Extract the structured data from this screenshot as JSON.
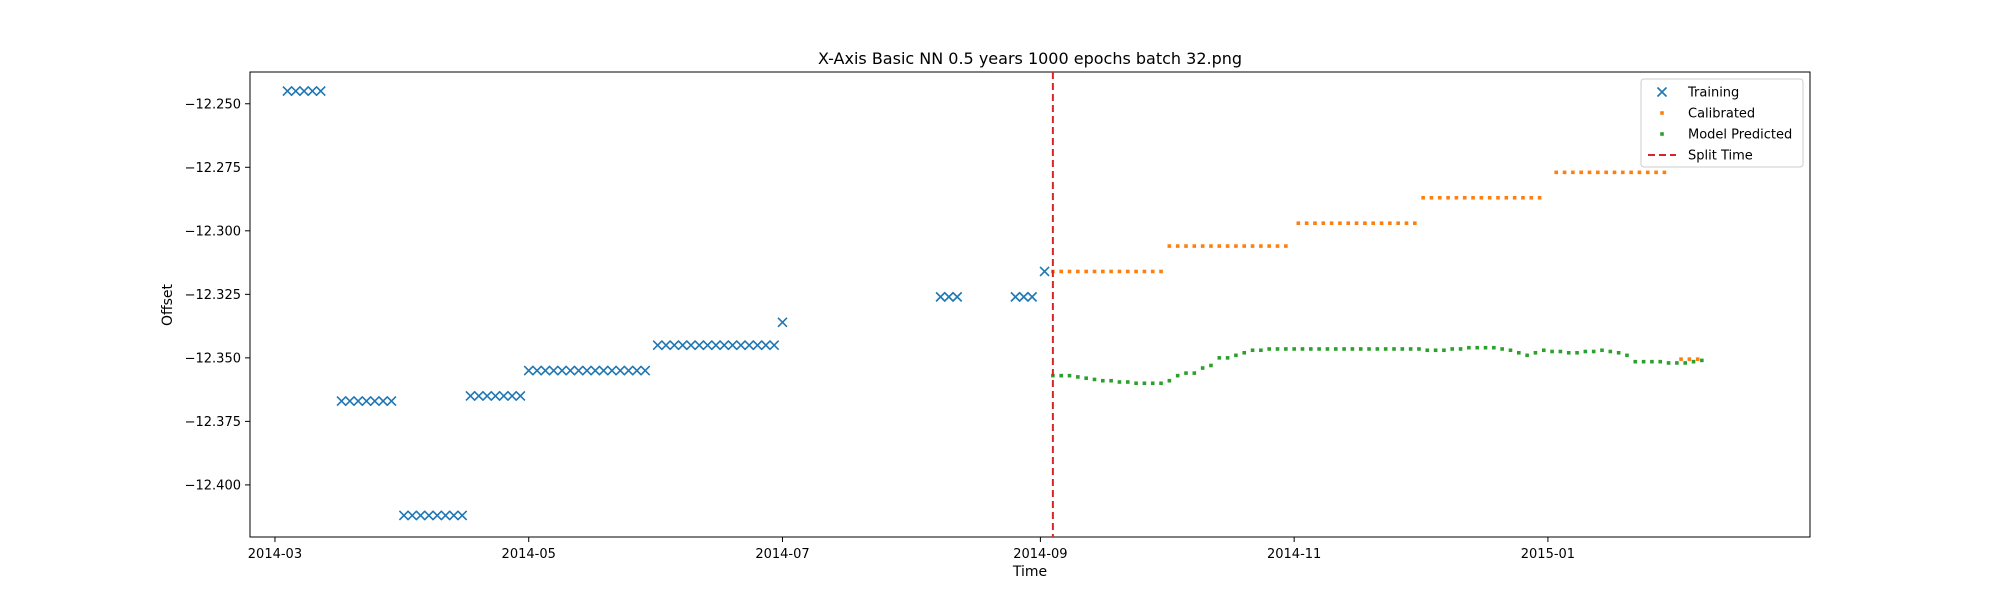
{
  "chart_data": {
    "type": "scatter",
    "title": "X-Axis Basic NN 0.5 years 1000 epochs batch 32.png",
    "xlabel": "Time",
    "ylabel": "Offset",
    "xlim": [
      "2014-02-23",
      "2015-03-05"
    ],
    "ylim": [
      -12.4205,
      -12.2375
    ],
    "x_ticks": [
      "2014-03-01",
      "2014-05-01",
      "2014-07-01",
      "2014-09-01",
      "2014-11-01",
      "2015-01-01"
    ],
    "x_tick_labels": [
      "2014-03",
      "2014-05",
      "2014-07",
      "2014-09",
      "2014-11",
      "2015-01"
    ],
    "y_ticks": [
      -12.25,
      -12.275,
      -12.3,
      -12.325,
      -12.35,
      -12.375,
      -12.4
    ],
    "y_tick_labels": [
      "−12.250",
      "−12.275",
      "−12.300",
      "−12.325",
      "−12.350",
      "−12.375",
      "−12.400"
    ],
    "grid": false,
    "legend_position": "top-right",
    "split_time": "2014-09-04",
    "series": [
      {
        "name": "Training",
        "marker": "x",
        "color": "#1f77b4",
        "points": [
          [
            "2014-03-04",
            -12.245
          ],
          [
            "2014-03-06",
            -12.245
          ],
          [
            "2014-03-08",
            -12.245
          ],
          [
            "2014-03-10",
            -12.245
          ],
          [
            "2014-03-12",
            -12.245
          ],
          [
            "2014-03-17",
            -12.367
          ],
          [
            "2014-03-19",
            -12.367
          ],
          [
            "2014-03-21",
            -12.367
          ],
          [
            "2014-03-23",
            -12.367
          ],
          [
            "2014-03-25",
            -12.367
          ],
          [
            "2014-03-27",
            -12.367
          ],
          [
            "2014-03-29",
            -12.367
          ],
          [
            "2014-04-01",
            -12.412
          ],
          [
            "2014-04-03",
            -12.412
          ],
          [
            "2014-04-05",
            -12.412
          ],
          [
            "2014-04-07",
            -12.412
          ],
          [
            "2014-04-09",
            -12.412
          ],
          [
            "2014-04-11",
            -12.412
          ],
          [
            "2014-04-13",
            -12.412
          ],
          [
            "2014-04-15",
            -12.412
          ],
          [
            "2014-04-17",
            -12.365
          ],
          [
            "2014-04-19",
            -12.365
          ],
          [
            "2014-04-21",
            -12.365
          ],
          [
            "2014-04-23",
            -12.365
          ],
          [
            "2014-04-25",
            -12.365
          ],
          [
            "2014-04-27",
            -12.365
          ],
          [
            "2014-04-29",
            -12.365
          ],
          [
            "2014-05-01",
            -12.355
          ],
          [
            "2014-05-03",
            -12.355
          ],
          [
            "2014-05-05",
            -12.355
          ],
          [
            "2014-05-07",
            -12.355
          ],
          [
            "2014-05-09",
            -12.355
          ],
          [
            "2014-05-11",
            -12.355
          ],
          [
            "2014-05-13",
            -12.355
          ],
          [
            "2014-05-15",
            -12.355
          ],
          [
            "2014-05-17",
            -12.355
          ],
          [
            "2014-05-19",
            -12.355
          ],
          [
            "2014-05-21",
            -12.355
          ],
          [
            "2014-05-23",
            -12.355
          ],
          [
            "2014-05-25",
            -12.355
          ],
          [
            "2014-05-27",
            -12.355
          ],
          [
            "2014-05-29",
            -12.355
          ],
          [
            "2014-06-01",
            -12.345
          ],
          [
            "2014-06-03",
            -12.345
          ],
          [
            "2014-06-05",
            -12.345
          ],
          [
            "2014-06-07",
            -12.345
          ],
          [
            "2014-06-09",
            -12.345
          ],
          [
            "2014-06-11",
            -12.345
          ],
          [
            "2014-06-13",
            -12.345
          ],
          [
            "2014-06-15",
            -12.345
          ],
          [
            "2014-06-17",
            -12.345
          ],
          [
            "2014-06-19",
            -12.345
          ],
          [
            "2014-06-21",
            -12.345
          ],
          [
            "2014-06-23",
            -12.345
          ],
          [
            "2014-06-25",
            -12.345
          ],
          [
            "2014-06-27",
            -12.345
          ],
          [
            "2014-06-29",
            -12.345
          ],
          [
            "2014-07-01",
            -12.336
          ],
          [
            "2014-08-08",
            -12.326
          ],
          [
            "2014-08-10",
            -12.326
          ],
          [
            "2014-08-12",
            -12.326
          ],
          [
            "2014-08-26",
            -12.326
          ],
          [
            "2014-08-28",
            -12.326
          ],
          [
            "2014-08-30",
            -12.326
          ],
          [
            "2014-09-02",
            -12.316
          ]
        ]
      },
      {
        "name": "Calibrated",
        "marker": "dot",
        "color": "#ff7f0e",
        "points": [
          [
            "2014-09-04",
            -12.316
          ],
          [
            "2014-09-06",
            -12.316
          ],
          [
            "2014-09-08",
            -12.316
          ],
          [
            "2014-09-10",
            -12.316
          ],
          [
            "2014-09-12",
            -12.316
          ],
          [
            "2014-09-14",
            -12.316
          ],
          [
            "2014-09-16",
            -12.316
          ],
          [
            "2014-09-18",
            -12.316
          ],
          [
            "2014-09-20",
            -12.316
          ],
          [
            "2014-09-22",
            -12.316
          ],
          [
            "2014-09-24",
            -12.316
          ],
          [
            "2014-09-26",
            -12.316
          ],
          [
            "2014-09-28",
            -12.316
          ],
          [
            "2014-09-30",
            -12.316
          ],
          [
            "2014-10-02",
            -12.306
          ],
          [
            "2014-10-04",
            -12.306
          ],
          [
            "2014-10-06",
            -12.306
          ],
          [
            "2014-10-08",
            -12.306
          ],
          [
            "2014-10-10",
            -12.306
          ],
          [
            "2014-10-12",
            -12.306
          ],
          [
            "2014-10-14",
            -12.306
          ],
          [
            "2014-10-16",
            -12.306
          ],
          [
            "2014-10-18",
            -12.306
          ],
          [
            "2014-10-20",
            -12.306
          ],
          [
            "2014-10-22",
            -12.306
          ],
          [
            "2014-10-24",
            -12.306
          ],
          [
            "2014-10-26",
            -12.306
          ],
          [
            "2014-10-28",
            -12.306
          ],
          [
            "2014-10-30",
            -12.306
          ],
          [
            "2014-11-02",
            -12.297
          ],
          [
            "2014-11-04",
            -12.297
          ],
          [
            "2014-11-06",
            -12.297
          ],
          [
            "2014-11-08",
            -12.297
          ],
          [
            "2014-11-10",
            -12.297
          ],
          [
            "2014-11-12",
            -12.297
          ],
          [
            "2014-11-14",
            -12.297
          ],
          [
            "2014-11-16",
            -12.297
          ],
          [
            "2014-11-18",
            -12.297
          ],
          [
            "2014-11-20",
            -12.297
          ],
          [
            "2014-11-22",
            -12.297
          ],
          [
            "2014-11-24",
            -12.297
          ],
          [
            "2014-11-26",
            -12.297
          ],
          [
            "2014-11-28",
            -12.297
          ],
          [
            "2014-11-30",
            -12.297
          ],
          [
            "2014-12-02",
            -12.287
          ],
          [
            "2014-12-04",
            -12.287
          ],
          [
            "2014-12-06",
            -12.287
          ],
          [
            "2014-12-08",
            -12.287
          ],
          [
            "2014-12-10",
            -12.287
          ],
          [
            "2014-12-12",
            -12.287
          ],
          [
            "2014-12-14",
            -12.287
          ],
          [
            "2014-12-16",
            -12.287
          ],
          [
            "2014-12-18",
            -12.287
          ],
          [
            "2014-12-20",
            -12.287
          ],
          [
            "2014-12-22",
            -12.287
          ],
          [
            "2014-12-24",
            -12.287
          ],
          [
            "2014-12-26",
            -12.287
          ],
          [
            "2014-12-28",
            -12.287
          ],
          [
            "2014-12-30",
            -12.287
          ],
          [
            "2015-01-03",
            -12.277
          ],
          [
            "2015-01-05",
            -12.277
          ],
          [
            "2015-01-07",
            -12.277
          ],
          [
            "2015-01-09",
            -12.277
          ],
          [
            "2015-01-11",
            -12.277
          ],
          [
            "2015-01-13",
            -12.277
          ],
          [
            "2015-01-15",
            -12.277
          ],
          [
            "2015-01-17",
            -12.277
          ],
          [
            "2015-01-19",
            -12.277
          ],
          [
            "2015-01-21",
            -12.277
          ],
          [
            "2015-01-23",
            -12.277
          ],
          [
            "2015-01-25",
            -12.277
          ],
          [
            "2015-01-27",
            -12.277
          ],
          [
            "2015-01-29",
            -12.277
          ],
          [
            "2015-02-02",
            -12.3505
          ],
          [
            "2015-02-04",
            -12.3505
          ],
          [
            "2015-02-06",
            -12.3505
          ]
        ]
      },
      {
        "name": "Model Predicted",
        "marker": "dot",
        "color": "#2ca02c",
        "points": [
          [
            "2014-09-04",
            -12.357
          ],
          [
            "2014-09-06",
            -12.357
          ],
          [
            "2014-09-08",
            -12.357
          ],
          [
            "2014-09-10",
            -12.3575
          ],
          [
            "2014-09-12",
            -12.358
          ],
          [
            "2014-09-14",
            -12.3585
          ],
          [
            "2014-09-16",
            -12.359
          ],
          [
            "2014-09-18",
            -12.359
          ],
          [
            "2014-09-20",
            -12.3595
          ],
          [
            "2014-09-22",
            -12.3595
          ],
          [
            "2014-09-24",
            -12.36
          ],
          [
            "2014-09-26",
            -12.36
          ],
          [
            "2014-09-28",
            -12.36
          ],
          [
            "2014-09-30",
            -12.36
          ],
          [
            "2014-10-02",
            -12.359
          ],
          [
            "2014-10-04",
            -12.357
          ],
          [
            "2014-10-06",
            -12.356
          ],
          [
            "2014-10-08",
            -12.356
          ],
          [
            "2014-10-10",
            -12.354
          ],
          [
            "2014-10-12",
            -12.353
          ],
          [
            "2014-10-14",
            -12.35
          ],
          [
            "2014-10-16",
            -12.35
          ],
          [
            "2014-10-18",
            -12.349
          ],
          [
            "2014-10-20",
            -12.348
          ],
          [
            "2014-10-22",
            -12.347
          ],
          [
            "2014-10-24",
            -12.347
          ],
          [
            "2014-10-26",
            -12.3465
          ],
          [
            "2014-10-28",
            -12.3465
          ],
          [
            "2014-10-30",
            -12.3465
          ],
          [
            "2014-11-01",
            -12.3465
          ],
          [
            "2014-11-03",
            -12.3465
          ],
          [
            "2014-11-05",
            -12.3465
          ],
          [
            "2014-11-07",
            -12.3465
          ],
          [
            "2014-11-09",
            -12.3465
          ],
          [
            "2014-11-11",
            -12.3465
          ],
          [
            "2014-11-13",
            -12.3465
          ],
          [
            "2014-11-15",
            -12.3465
          ],
          [
            "2014-11-17",
            -12.3465
          ],
          [
            "2014-11-19",
            -12.3465
          ],
          [
            "2014-11-21",
            -12.3465
          ],
          [
            "2014-11-23",
            -12.3465
          ],
          [
            "2014-11-25",
            -12.3465
          ],
          [
            "2014-11-27",
            -12.3465
          ],
          [
            "2014-11-29",
            -12.3465
          ],
          [
            "2014-12-01",
            -12.3465
          ],
          [
            "2014-12-03",
            -12.347
          ],
          [
            "2014-12-05",
            -12.347
          ],
          [
            "2014-12-07",
            -12.347
          ],
          [
            "2014-12-09",
            -12.3465
          ],
          [
            "2014-12-11",
            -12.3465
          ],
          [
            "2014-12-13",
            -12.346
          ],
          [
            "2014-12-15",
            -12.346
          ],
          [
            "2014-12-17",
            -12.346
          ],
          [
            "2014-12-19",
            -12.346
          ],
          [
            "2014-12-21",
            -12.3465
          ],
          [
            "2014-12-23",
            -12.347
          ],
          [
            "2014-12-25",
            -12.348
          ],
          [
            "2014-12-27",
            -12.349
          ],
          [
            "2014-12-29",
            -12.348
          ],
          [
            "2014-12-31",
            -12.347
          ],
          [
            "2015-01-02",
            -12.3475
          ],
          [
            "2015-01-04",
            -12.3475
          ],
          [
            "2015-01-06",
            -12.348
          ],
          [
            "2015-01-08",
            -12.348
          ],
          [
            "2015-01-10",
            -12.3475
          ],
          [
            "2015-01-12",
            -12.3475
          ],
          [
            "2015-01-14",
            -12.347
          ],
          [
            "2015-01-16",
            -12.3475
          ],
          [
            "2015-01-18",
            -12.348
          ],
          [
            "2015-01-20",
            -12.349
          ],
          [
            "2015-01-22",
            -12.3515
          ],
          [
            "2015-01-24",
            -12.3515
          ],
          [
            "2015-01-26",
            -12.3515
          ],
          [
            "2015-01-28",
            -12.3515
          ],
          [
            "2015-01-30",
            -12.352
          ],
          [
            "2015-02-01",
            -12.352
          ],
          [
            "2015-02-03",
            -12.352
          ],
          [
            "2015-02-05",
            -12.3515
          ],
          [
            "2015-02-07",
            -12.351
          ]
        ]
      },
      {
        "name": "Split Time",
        "marker": "dashed-line",
        "color": "#d62728",
        "points": []
      }
    ]
  }
}
